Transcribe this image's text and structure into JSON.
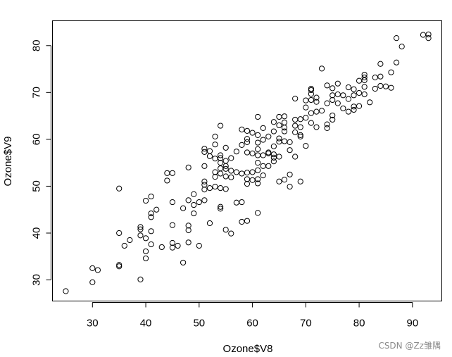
{
  "chart_data": {
    "type": "scatter",
    "title": "",
    "xlabel": "Ozone$V8",
    "ylabel": "Ozone$V9",
    "xlim": [
      22.5,
      95.5
    ],
    "ylim": [
      25.5,
      85.3
    ],
    "x_ticks": [
      30,
      40,
      50,
      60,
      70,
      80,
      90
    ],
    "y_ticks": [
      30,
      40,
      50,
      60,
      70,
      80
    ],
    "grid": false,
    "legend": "none",
    "marker": "open-circle",
    "colors": {
      "marker": "#000000",
      "axis": "#000000",
      "background": "#ffffff"
    },
    "points": [
      [
        25,
        27.6
      ],
      [
        30,
        29.5
      ],
      [
        30,
        32.5
      ],
      [
        31,
        32.1
      ],
      [
        35,
        32.9
      ],
      [
        35,
        33.2
      ],
      [
        35,
        40.0
      ],
      [
        35,
        49.5
      ],
      [
        36,
        37.3
      ],
      [
        37,
        38.5
      ],
      [
        39,
        30.1
      ],
      [
        39,
        39.5
      ],
      [
        39,
        40.8
      ],
      [
        39,
        41.3
      ],
      [
        40,
        34.6
      ],
      [
        40,
        36.1
      ],
      [
        40,
        38.9
      ],
      [
        40,
        46.9
      ],
      [
        41,
        37.6
      ],
      [
        41,
        40.4
      ],
      [
        41,
        43.4
      ],
      [
        41,
        44.2
      ],
      [
        41,
        47.8
      ],
      [
        42,
        45.0
      ],
      [
        43,
        37.0
      ],
      [
        44,
        51.2
      ],
      [
        44,
        52.8
      ],
      [
        45,
        36.9
      ],
      [
        45,
        37.9
      ],
      [
        45,
        41.7
      ],
      [
        45,
        46.6
      ],
      [
        45,
        52.8
      ],
      [
        46,
        37.3
      ],
      [
        47,
        33.7
      ],
      [
        47,
        45.3
      ],
      [
        48,
        38.0
      ],
      [
        48,
        40.6
      ],
      [
        48,
        41.6
      ],
      [
        48,
        47.0
      ],
      [
        48,
        54.0
      ],
      [
        49,
        44.2
      ],
      [
        49,
        46.0
      ],
      [
        49,
        48.3
      ],
      [
        50,
        37.3
      ],
      [
        50,
        46.6
      ],
      [
        51,
        47.0
      ],
      [
        51,
        49.3
      ],
      [
        51,
        50.3
      ],
      [
        51,
        51.0
      ],
      [
        51,
        54.3
      ],
      [
        51,
        57.3
      ],
      [
        51,
        58.0
      ],
      [
        52,
        42.1
      ],
      [
        52,
        49.6
      ],
      [
        52,
        56.4
      ],
      [
        52,
        57.5
      ],
      [
        53,
        49.9
      ],
      [
        53,
        52.0
      ],
      [
        53,
        53.0
      ],
      [
        53,
        55.9
      ],
      [
        53,
        58.9
      ],
      [
        53,
        60.6
      ],
      [
        54,
        45.2
      ],
      [
        54,
        45.6
      ],
      [
        54,
        49.6
      ],
      [
        54,
        52.7
      ],
      [
        54,
        53.8
      ],
      [
        54,
        55.0
      ],
      [
        54,
        56.0
      ],
      [
        54,
        56.6
      ],
      [
        54,
        62.9
      ],
      [
        55,
        40.7
      ],
      [
        55,
        49.4
      ],
      [
        55,
        52.1
      ],
      [
        55,
        53.7
      ],
      [
        55,
        54.3
      ],
      [
        55,
        55.4
      ],
      [
        55,
        58.2
      ],
      [
        56,
        39.9
      ],
      [
        56,
        51.9
      ],
      [
        56,
        53.3
      ],
      [
        56,
        56.0
      ],
      [
        57,
        46.5
      ],
      [
        57,
        53.0
      ],
      [
        57,
        57.4
      ],
      [
        58,
        42.4
      ],
      [
        58,
        46.6
      ],
      [
        58,
        52.7
      ],
      [
        58,
        58.8
      ],
      [
        58,
        62.1
      ],
      [
        59,
        42.6
      ],
      [
        59,
        50.5
      ],
      [
        59,
        51.5
      ],
      [
        59,
        52.9
      ],
      [
        59,
        57.2
      ],
      [
        59,
        59.4
      ],
      [
        59,
        60.1
      ],
      [
        59,
        61.8
      ],
      [
        60,
        51.3
      ],
      [
        60,
        53.0
      ],
      [
        60,
        57.0
      ],
      [
        60,
        61.4
      ],
      [
        61,
        44.3
      ],
      [
        61,
        50.6
      ],
      [
        61,
        51.5
      ],
      [
        61,
        53.4
      ],
      [
        61,
        55.0
      ],
      [
        61,
        56.6
      ],
      [
        61,
        57.9
      ],
      [
        61,
        59.3
      ],
      [
        61,
        60.9
      ],
      [
        61,
        64.8
      ],
      [
        62,
        52.3
      ],
      [
        62,
        54.3
      ],
      [
        62,
        56.6
      ],
      [
        62,
        59.9
      ],
      [
        62,
        62.4
      ],
      [
        63,
        54.3
      ],
      [
        63,
        57.0
      ],
      [
        63,
        57.2
      ],
      [
        63,
        60.6
      ],
      [
        64,
        55.3
      ],
      [
        64,
        56.1
      ],
      [
        64,
        56.8
      ],
      [
        64,
        58.5
      ],
      [
        64,
        61.7
      ],
      [
        64,
        63.7
      ],
      [
        65,
        51.0
      ],
      [
        65,
        56.3
      ],
      [
        65,
        59.5
      ],
      [
        65,
        60.2
      ],
      [
        65,
        63.0
      ],
      [
        65,
        64.8
      ],
      [
        66,
        51.4
      ],
      [
        66,
        59.6
      ],
      [
        66,
        61.7
      ],
      [
        66,
        62.5
      ],
      [
        66,
        63.6
      ],
      [
        66,
        64.9
      ],
      [
        67,
        49.9
      ],
      [
        67,
        52.5
      ],
      [
        67,
        57.7
      ],
      [
        67,
        59.4
      ],
      [
        68,
        56.3
      ],
      [
        68,
        61.5
      ],
      [
        68,
        62.9
      ],
      [
        68,
        64.2
      ],
      [
        68,
        68.7
      ],
      [
        69,
        51.0
      ],
      [
        69,
        60.6
      ],
      [
        69,
        60.9
      ],
      [
        69,
        62.6
      ],
      [
        69,
        64.3
      ],
      [
        70,
        58.6
      ],
      [
        70,
        64.6
      ],
      [
        70,
        66.8
      ],
      [
        70,
        68.3
      ],
      [
        71,
        63.5
      ],
      [
        71,
        65.6
      ],
      [
        71,
        68.4
      ],
      [
        71,
        69.7
      ],
      [
        71,
        70.5
      ],
      [
        71,
        70.8
      ],
      [
        72,
        62.6
      ],
      [
        72,
        65.9
      ],
      [
        72,
        68.0
      ],
      [
        72,
        68.9
      ],
      [
        73,
        66.1
      ],
      [
        73,
        75.1
      ],
      [
        74,
        62.4
      ],
      [
        74,
        63.2
      ],
      [
        74,
        67.7
      ],
      [
        74,
        71.5
      ],
      [
        75,
        64.2
      ],
      [
        75,
        65.1
      ],
      [
        75,
        68.4
      ],
      [
        75,
        69.4
      ],
      [
        75,
        70.9
      ],
      [
        76,
        67.7
      ],
      [
        76,
        69.6
      ],
      [
        76,
        71.9
      ],
      [
        77,
        66.6
      ],
      [
        77,
        69.4
      ],
      [
        78,
        65.9
      ],
      [
        78,
        68.6
      ],
      [
        78,
        71.1
      ],
      [
        79,
        66.3
      ],
      [
        79,
        67.0
      ],
      [
        79,
        69.4
      ],
      [
        79,
        70.7
      ],
      [
        80,
        67.1
      ],
      [
        80,
        69.9
      ],
      [
        80,
        72.5
      ],
      [
        81,
        69.6
      ],
      [
        81,
        71.2
      ],
      [
        81,
        72.6
      ],
      [
        81,
        73.2
      ],
      [
        81,
        73.8
      ],
      [
        82,
        67.9
      ],
      [
        83,
        70.8
      ],
      [
        83,
        73.2
      ],
      [
        84,
        71.4
      ],
      [
        84,
        73.4
      ],
      [
        84,
        76.1
      ],
      [
        85,
        71.3
      ],
      [
        86,
        71.0
      ],
      [
        86,
        74.3
      ],
      [
        87,
        76.4
      ],
      [
        87,
        81.6
      ],
      [
        88,
        79.8
      ],
      [
        92,
        82.3
      ],
      [
        93,
        81.6
      ],
      [
        93,
        82.4
      ]
    ]
  },
  "watermark": {
    "text": "CSDN @Zz雏隅"
  }
}
